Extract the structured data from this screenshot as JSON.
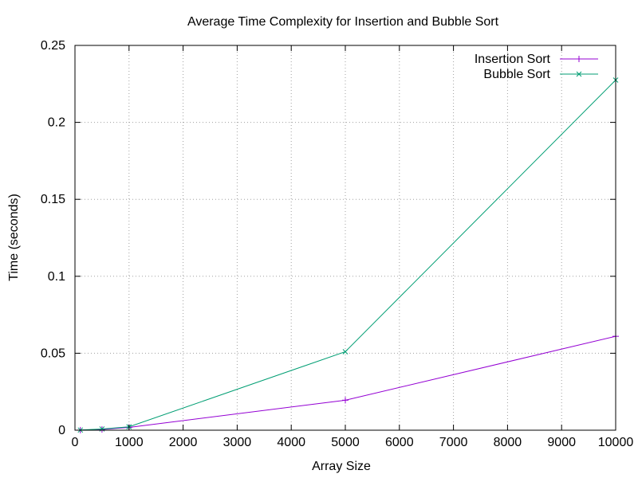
{
  "chart_data": {
    "type": "line",
    "title": "Average Time Complexity for Insertion and Bubble Sort",
    "xlabel": "Array Size",
    "ylabel": "Time (seconds)",
    "xlim": [
      0,
      10000
    ],
    "ylim": [
      0,
      0.25
    ],
    "x_ticks": [
      0,
      1000,
      2000,
      3000,
      4000,
      5000,
      6000,
      7000,
      8000,
      9000,
      10000
    ],
    "y_ticks": [
      0,
      0.05,
      0.1,
      0.15,
      0.2,
      0.25
    ],
    "y_tick_labels": [
      "0",
      "0.05",
      "0.1",
      "0.15",
      "0.2",
      "0.25"
    ],
    "grid": true,
    "legend_position": "top-right",
    "series": [
      {
        "name": "Insertion Sort",
        "color": "#9400d3",
        "marker": "plus",
        "x": [
          100,
          500,
          1000,
          5000,
          10000
        ],
        "y": [
          5e-05,
          0.0005,
          0.0018,
          0.0195,
          0.061
        ]
      },
      {
        "name": "Bubble Sort",
        "color": "#009e73",
        "marker": "cross",
        "x": [
          100,
          500,
          1000,
          5000,
          10000
        ],
        "y": [
          0.0001,
          0.0008,
          0.0022,
          0.051,
          0.2275
        ]
      }
    ]
  }
}
